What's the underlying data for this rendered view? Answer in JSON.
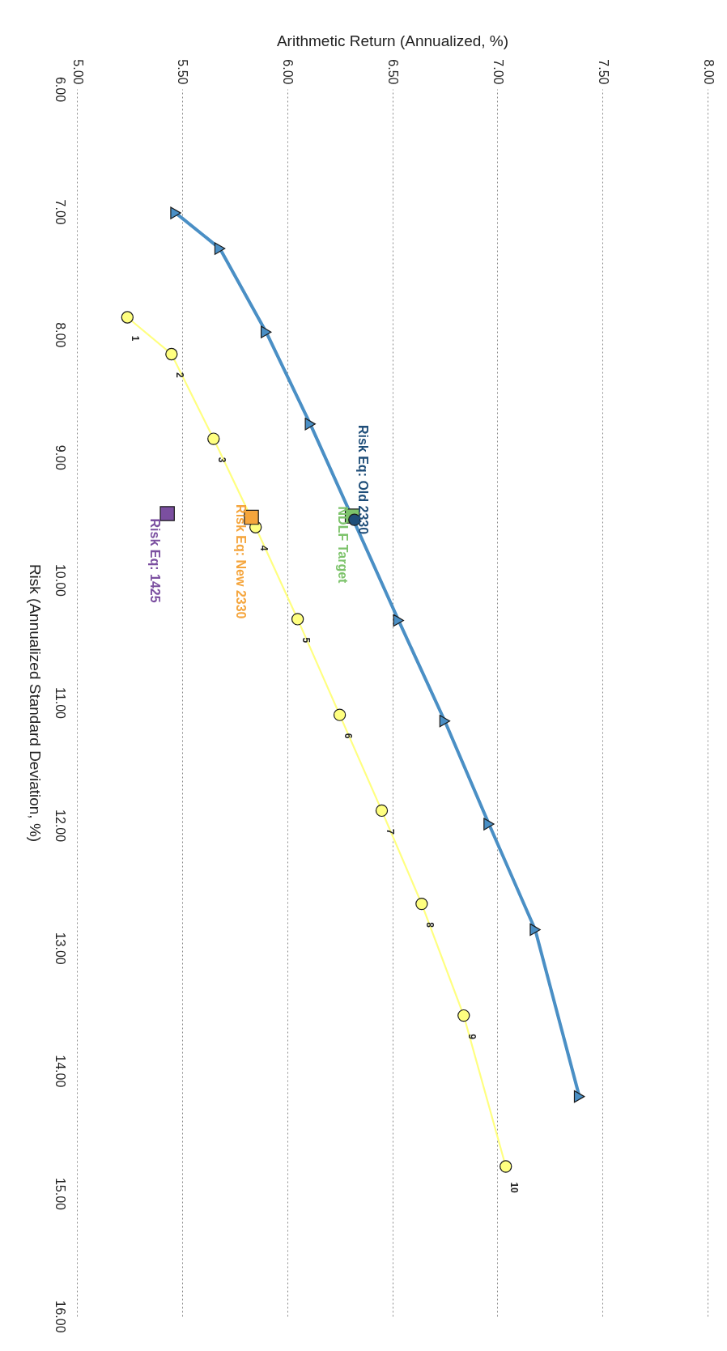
{
  "chart_data": {
    "type": "line",
    "xlabel": "Arithmetic Return (Annualized, %)",
    "ylabel": "Risk (Annualized Standard Deviation, %)",
    "xlim": [
      5,
      8
    ],
    "xticks": [
      {
        "value": 5,
        "label": "5.00"
      },
      {
        "value": 5.5,
        "label": "5.50"
      },
      {
        "value": 6,
        "label": "6.00"
      },
      {
        "value": 6.5,
        "label": "6.50"
      },
      {
        "value": 7,
        "label": "7.00"
      },
      {
        "value": 7.5,
        "label": "7.50"
      },
      {
        "value": 8,
        "label": "8.00"
      }
    ],
    "ylim": [
      16,
      6
    ],
    "yticks": [
      {
        "value": 6,
        "label": "6.00"
      },
      {
        "value": 7,
        "label": "7.00"
      },
      {
        "value": 8,
        "label": "8.00"
      },
      {
        "value": 9,
        "label": "9.00"
      },
      {
        "value": 10,
        "label": "10.00"
      },
      {
        "value": 11,
        "label": "11.00"
      },
      {
        "value": 12,
        "label": "12.00"
      },
      {
        "value": 13,
        "label": "13.00"
      },
      {
        "value": 14,
        "label": "14.00"
      },
      {
        "value": 15,
        "label": "15.00"
      },
      {
        "value": 16,
        "label": "16.00"
      }
    ],
    "grid": "x",
    "series": [
      {
        "color": "#4a8fc5",
        "marker": "triangle",
        "x": [
          5.47,
          5.68,
          5.9,
          6.11,
          6.53,
          6.75,
          6.96,
          7.18,
          7.39
        ],
        "values": [
          7.01,
          7.3,
          7.98,
          8.73,
          10.33,
          11.15,
          11.99,
          12.85,
          14.21
        ]
      },
      {
        "color": "#ffff80",
        "marker": "circle",
        "x": [
          5.24,
          5.45,
          5.65,
          5.85,
          6.05,
          6.25,
          6.45,
          6.64,
          6.84,
          7.04
        ],
        "values": [
          7.86,
          8.16,
          8.85,
          9.57,
          10.32,
          11.1,
          11.88,
          12.64,
          13.55,
          14.78
        ]
      },
      {
        "type": "scatter",
        "name": "NDLF Target",
        "color": "#7dc36b",
        "marker": "square",
        "x": [
          6.31
        ],
        "values": [
          9.48
        ]
      },
      {
        "type": "scatter",
        "name": "Risk Eq: Old 2330",
        "color": "#1f4e79",
        "marker": "circle",
        "x": [
          6.32
        ],
        "values": [
          9.51
        ]
      },
      {
        "type": "scatter",
        "name": "Risk Eq: New 2330",
        "color": "#f5a53c",
        "marker": "square",
        "x": [
          5.83
        ],
        "values": [
          9.49
        ]
      },
      {
        "type": "scatter",
        "name": "Risk Eq: 1425",
        "color": "#7b4fa0",
        "marker": "square",
        "x": [
          5.43
        ],
        "values": [
          9.46
        ]
      }
    ],
    "annotations": [
      {
        "text": "1",
        "x": 5.24,
        "y": 7.86
      },
      {
        "text": "2",
        "x": 5.45,
        "y": 8.16
      },
      {
        "text": "3",
        "x": 5.65,
        "y": 8.85
      },
      {
        "text": "4",
        "x": 5.85,
        "y": 9.57
      },
      {
        "text": "5",
        "x": 6.05,
        "y": 10.32
      },
      {
        "text": "6",
        "x": 6.25,
        "y": 11.1
      },
      {
        "text": "7",
        "x": 6.45,
        "y": 11.88
      },
      {
        "text": "8",
        "x": 6.64,
        "y": 12.64
      },
      {
        "text": "9",
        "x": 6.84,
        "y": 13.55
      },
      {
        "text": "10",
        "x": 7.04,
        "y": 14.78
      }
    ]
  }
}
